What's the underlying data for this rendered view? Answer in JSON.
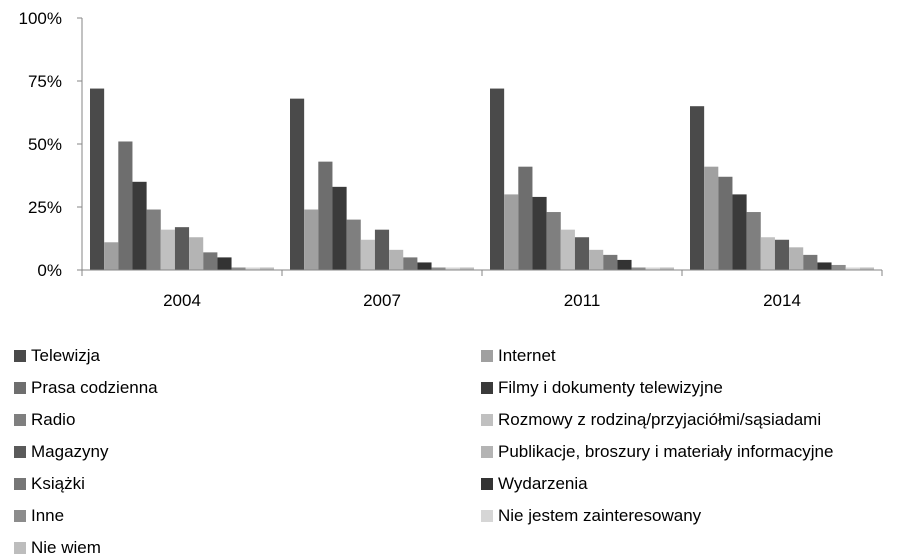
{
  "chart_data": {
    "type": "bar",
    "categories": [
      "2004",
      "2007",
      "2011",
      "2014"
    ],
    "y_tick_labels": [
      "0%",
      "25%",
      "50%",
      "75%",
      "100%"
    ],
    "ylim": [
      0,
      100
    ],
    "grid": false,
    "legend_position": "bottom",
    "series": [
      {
        "name": "Telewizja",
        "color": "#4a4a4a",
        "values": [
          72,
          68,
          72,
          65
        ]
      },
      {
        "name": "Internet",
        "color": "#a0a0a0",
        "values": [
          11,
          24,
          30,
          41
        ]
      },
      {
        "name": "Prasa codzienna",
        "color": "#6e6e6e",
        "values": [
          51,
          43,
          41,
          37
        ]
      },
      {
        "name": "Filmy i dokumenty telewizyjne",
        "color": "#3a3a3a",
        "values": [
          35,
          33,
          29,
          30
        ]
      },
      {
        "name": "Radio",
        "color": "#7f7f7f",
        "values": [
          24,
          20,
          23,
          23
        ]
      },
      {
        "name": "Rozmowy z rodziną/przyjaciółmi/sąsiadami",
        "color": "#c0c0c0",
        "values": [
          16,
          12,
          16,
          13
        ]
      },
      {
        "name": "Magazyny",
        "color": "#5a5a5a",
        "values": [
          17,
          16,
          13,
          12
        ]
      },
      {
        "name": "Publikacje, broszury i materiały informacyjne",
        "color": "#b4b4b4",
        "values": [
          13,
          8,
          8,
          9
        ]
      },
      {
        "name": "Książki",
        "color": "#767676",
        "values": [
          7,
          5,
          6,
          6
        ]
      },
      {
        "name": "Wydarzenia",
        "color": "#333333",
        "values": [
          5,
          3,
          4,
          3
        ]
      },
      {
        "name": "Inne",
        "color": "#8c8c8c",
        "values": [
          1,
          1,
          1,
          2
        ]
      },
      {
        "name": "Nie jestem zainteresowany",
        "color": "#d6d6d6",
        "values": [
          1,
          1,
          1,
          1
        ]
      },
      {
        "name": "Nie wiem",
        "color": "#bdbdbd",
        "values": [
          1,
          1,
          1,
          1
        ]
      }
    ]
  }
}
